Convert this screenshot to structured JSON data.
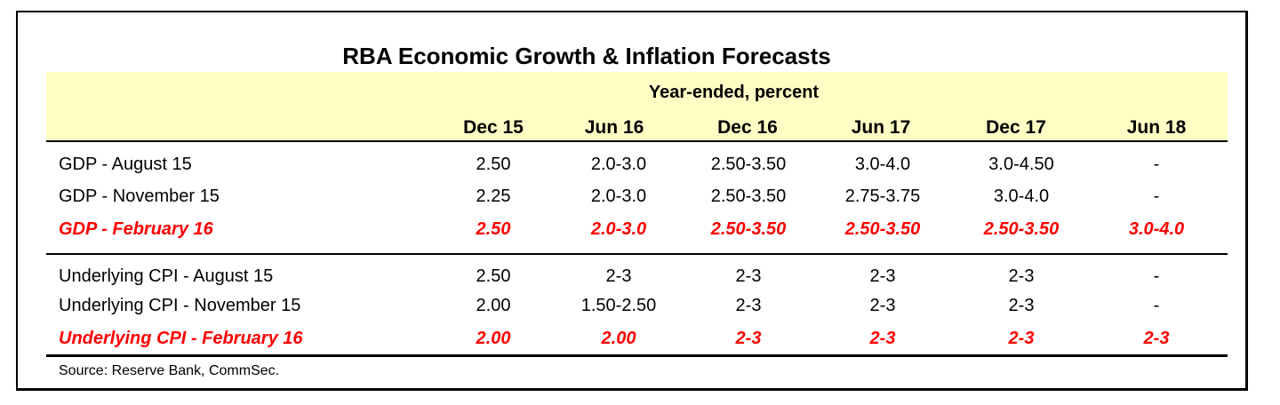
{
  "title": "RBA Economic Growth & Inflation Forecasts",
  "subtitle": "Year-ended, percent",
  "columns": [
    "Dec 15",
    "Jun 16",
    "Dec 16",
    "Jun 17",
    "Dec 17",
    "Jun 18"
  ],
  "rows": [
    {
      "label": "GDP - August 15",
      "values": [
        "2.50",
        "2.0-3.0",
        "2.50-3.50",
        "3.0-4.0",
        "3.0-4.50",
        "-"
      ]
    },
    {
      "label": "GDP - November 15",
      "values": [
        "2.25",
        "2.0-3.0",
        "2.50-3.50",
        "2.75-3.75",
        "3.0-4.0",
        "-"
      ]
    },
    {
      "label": "GDP - February 16",
      "values": [
        "2.50",
        "2.0-3.0",
        "2.50-3.50",
        "2.50-3.50",
        "2.50-3.50",
        "3.0-4.0"
      ]
    },
    {
      "label": "Underlying CPI - August 15",
      "values": [
        "2.50",
        "2-3",
        "2-3",
        "2-3",
        "2-3",
        "-"
      ]
    },
    {
      "label": "Underlying CPI - November 15",
      "values": [
        "2.00",
        "1.50-2.50",
        "2-3",
        "2-3",
        "2-3",
        "-"
      ]
    },
    {
      "label": "Underlying CPI - February 16",
      "values": [
        "2.00",
        "2.00",
        "2-3",
        "2-3",
        "2-3",
        "2-3"
      ]
    }
  ],
  "source": "Source: Reserve Bank, CommSec.",
  "colors": {
    "header_band": "#ffffc5",
    "highlight_text": "#ff0000"
  }
}
